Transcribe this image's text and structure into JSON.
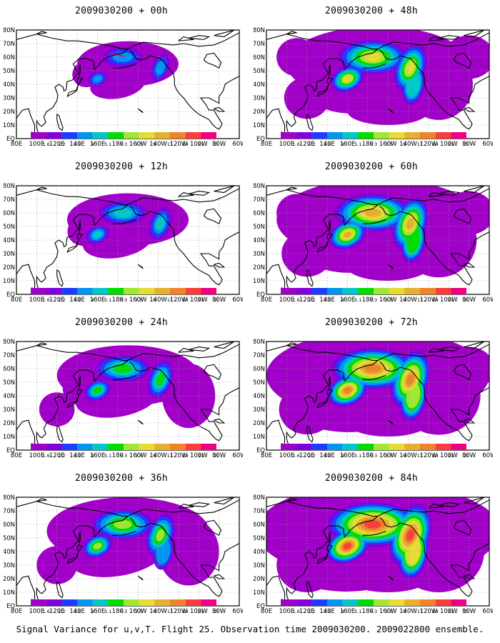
{
  "colorbar": {
    "levels": [
      "1.6",
      "2.2",
      "3.1",
      "4",
      "5.1",
      "6.3",
      "7.5",
      "9",
      "11",
      "14",
      "21",
      "29",
      "40"
    ],
    "colors": [
      "#a000c8",
      "#8200dc",
      "#1e3cff",
      "#0096f0",
      "#00c8c8",
      "#00dc00",
      "#a0e632",
      "#e6dc32",
      "#e6af2d",
      "#f08228",
      "#fa3c3c",
      "#f00082"
    ]
  },
  "axes": {
    "lon_labels": [
      "80E",
      "100E",
      "120E",
      "140E",
      "160E",
      "180",
      "160W",
      "140W",
      "120W",
      "100W",
      "80W",
      "60W"
    ],
    "lat_labels_left": [
      "EQ",
      "10N",
      "20N",
      "30N",
      "40N",
      "50N",
      "60N",
      "70N",
      "80N"
    ]
  },
  "panels": [
    {
      "id": "p00",
      "title": "2009030200 + 00h",
      "intensity": 1
    },
    {
      "id": "p48",
      "title": "2009030200 + 48h",
      "intensity": 5
    },
    {
      "id": "p12",
      "title": "2009030200 + 12h",
      "intensity": 2
    },
    {
      "id": "p60",
      "title": "2009030200 + 60h",
      "intensity": 6
    },
    {
      "id": "p24",
      "title": "2009030200 + 24h",
      "intensity": 3
    },
    {
      "id": "p72",
      "title": "2009030200 + 72h",
      "intensity": 7
    },
    {
      "id": "p36",
      "title": "2009030200 + 36h",
      "intensity": 4
    },
    {
      "id": "p84",
      "title": "2009030200 + 84h",
      "intensity": 8
    }
  ],
  "footer": "Signal Variance for u,v,T. Flight 25. Observation time 2009030200. 2009022800 ensemble."
}
